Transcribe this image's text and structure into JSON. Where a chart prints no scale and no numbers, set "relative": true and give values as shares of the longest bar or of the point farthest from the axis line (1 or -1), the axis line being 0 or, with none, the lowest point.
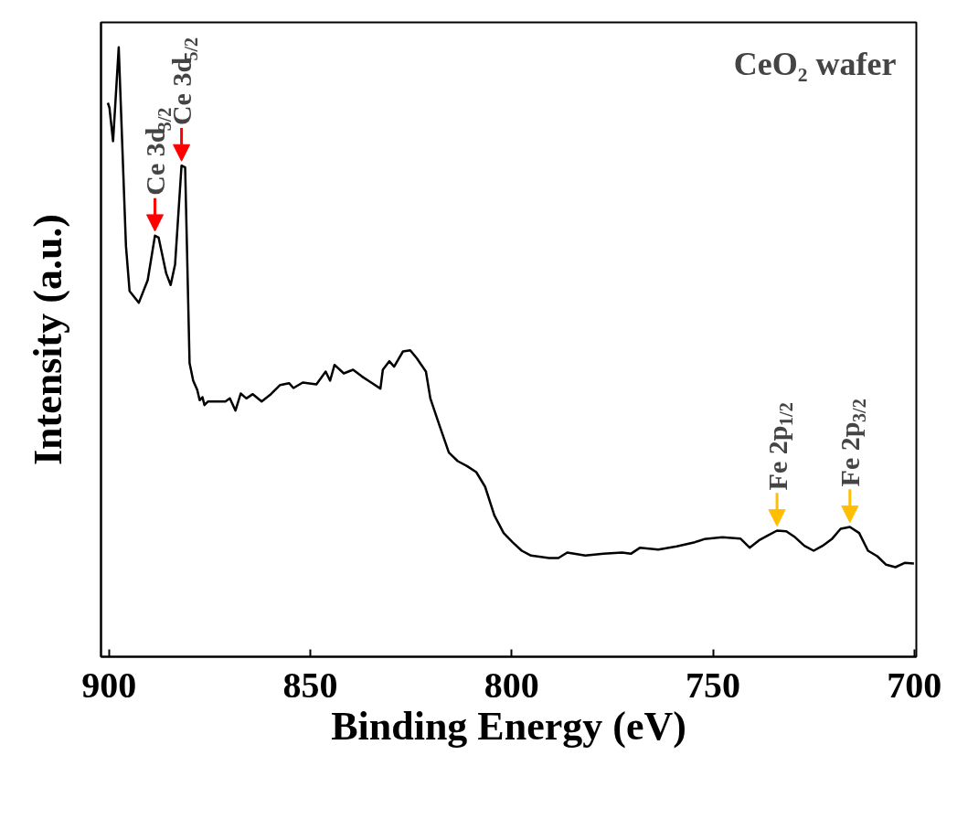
{
  "chart_data": {
    "type": "line",
    "relative": true,
    "xlabel": "Binding Energy (eV)",
    "ylabel": "Intensity (a.u.)",
    "xlim": [
      902,
      699.5
    ],
    "xticks": [
      900,
      850,
      800,
      750,
      700
    ],
    "grid": false,
    "marker": "none",
    "line_style": "solid",
    "tick_labels": "x",
    "x": [
      900.3,
      899.9,
      899.0,
      897.6,
      895.8,
      894.9,
      892.6,
      890.4,
      888.6,
      887.7,
      885.8,
      884.7,
      883.6,
      882.0,
      881.1,
      880.0,
      879.1,
      878.1,
      877.5,
      876.8,
      876.3,
      875.4,
      873.4,
      871.1,
      870.0,
      868.6,
      867.3,
      865.9,
      864.3,
      862.1,
      859.8,
      857.5,
      855.3,
      854.2,
      851.9,
      848.5,
      846.2,
      845.1,
      844.0,
      841.7,
      839.4,
      837.2,
      834.9,
      832.6,
      832.0,
      830.4,
      829.2,
      827.0,
      825.2,
      823.6,
      821.3,
      820.2,
      817.9,
      815.6,
      813.4,
      811.1,
      808.8,
      806.6,
      804.3,
      802.0,
      799.8,
      797.5,
      795.2,
      790.7,
      788.4,
      786.2,
      781.7,
      777.2,
      772.6,
      770.4,
      768.1,
      763.6,
      759.0,
      754.5,
      752.2,
      747.7,
      743.2,
      740.9,
      738.6,
      736.4,
      734.1,
      731.8,
      729.6,
      727.3,
      725.0,
      722.8,
      720.5,
      718.3,
      716.0,
      713.7,
      711.5,
      709.2,
      707.0,
      704.7,
      702.4,
      700.1
    ],
    "series": [
      {
        "color": "#000000",
        "values": [
          0.909,
          0.901,
          0.846,
          1,
          0.674,
          0.6,
          0.581,
          0.618,
          0.691,
          0.688,
          0.629,
          0.61,
          0.644,
          0.806,
          0.803,
          0.482,
          0.453,
          0.438,
          0.421,
          0.426,
          0.413,
          0.419,
          0.419,
          0.419,
          0.424,
          0.404,
          0.432,
          0.424,
          0.431,
          0.419,
          0.431,
          0.446,
          0.449,
          0.441,
          0.45,
          0.447,
          0.468,
          0.453,
          0.479,
          0.465,
          0.471,
          0.46,
          0.45,
          0.44,
          0.471,
          0.485,
          0.476,
          0.501,
          0.503,
          0.49,
          0.468,
          0.424,
          0.379,
          0.335,
          0.321,
          0.313,
          0.303,
          0.279,
          0.232,
          0.203,
          0.188,
          0.174,
          0.166,
          0.162,
          0.162,
          0.171,
          0.166,
          0.169,
          0.171,
          0.169,
          0.179,
          0.176,
          0.181,
          0.188,
          0.193,
          0.196,
          0.194,
          0.179,
          0.191,
          0.199,
          0.207,
          0.206,
          0.196,
          0.182,
          0.174,
          0.182,
          0.193,
          0.21,
          0.213,
          0.203,
          0.174,
          0.165,
          0.151,
          0.147,
          0.154,
          0.153
        ]
      }
    ],
    "annotations": [
      "CeO₂ wafer",
      {
        "text": "Ce 3d$_{3/2}$",
        "x": 888.6,
        "y": 0.691
      },
      {
        "text": "Ce 3d$_{5/2}$",
        "x": 882.0,
        "y": 0.806
      },
      {
        "text": "Fe 2p$_{1/2}$",
        "x": 734.1,
        "y": 0.207
      },
      {
        "text": "Fe 2p$_{3/2}$",
        "x": 716.0,
        "y": 0.213
      }
    ]
  }
}
